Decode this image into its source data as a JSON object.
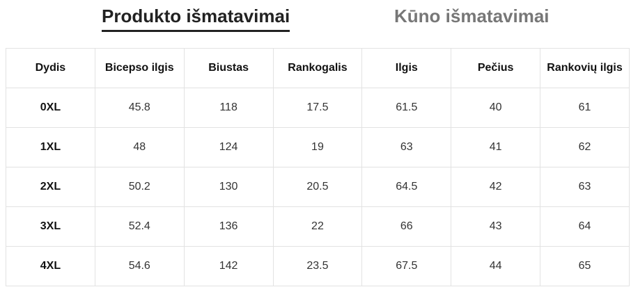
{
  "tabs": [
    "Produkto išmatavimai",
    "Kūno išmatavimai"
  ],
  "table": {
    "columns": [
      "Dydis",
      "Bicepso ilgis",
      "Biustas",
      "Rankogalis",
      "Ilgis",
      "Pečius",
      "Rankovių ilgis"
    ],
    "rows": [
      [
        "0XL",
        45.8,
        118,
        17.5,
        61.5,
        40,
        61
      ],
      [
        "1XL",
        48,
        124,
        19,
        63,
        41,
        62
      ],
      [
        "2XL",
        50.2,
        130,
        20.5,
        64.5,
        42,
        63
      ],
      [
        "3XL",
        52.4,
        136,
        22,
        66,
        43,
        64
      ],
      [
        "4XL",
        54.6,
        142,
        23.5,
        67.5,
        44,
        65
      ]
    ]
  }
}
